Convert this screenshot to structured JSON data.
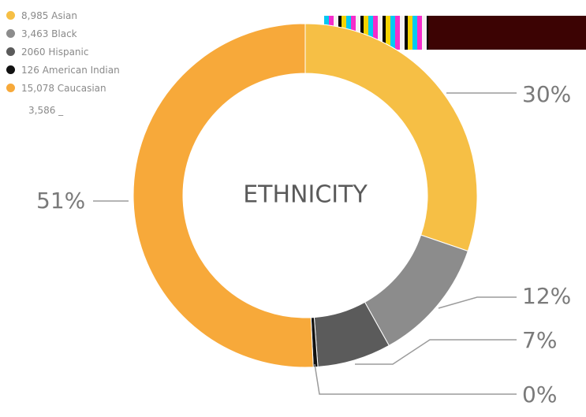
{
  "chart_data": {
    "type": "pie",
    "title": "ETHNICITY",
    "categories": [
      "Asian",
      "Black",
      "Hispanic",
      "American Indian",
      "Caucasian"
    ],
    "values": [
      8985,
      3463,
      2060,
      126,
      15078
    ],
    "legend": [
      "8,985 Asian",
      "3,463 Black",
      "2060 Hispanic",
      "126 American Indian",
      "15,078 Caucasian"
    ],
    "legend_extra": "3,586 _",
    "data_labels": [
      "30%",
      "12%",
      "7%",
      "0%",
      "51%"
    ],
    "colors": [
      "#f6bf45",
      "#8c8c8c",
      "#5b5b5b",
      "#111111",
      "#f7a93a"
    ],
    "donut": true,
    "legend_position": "top-left",
    "grid": false
  }
}
